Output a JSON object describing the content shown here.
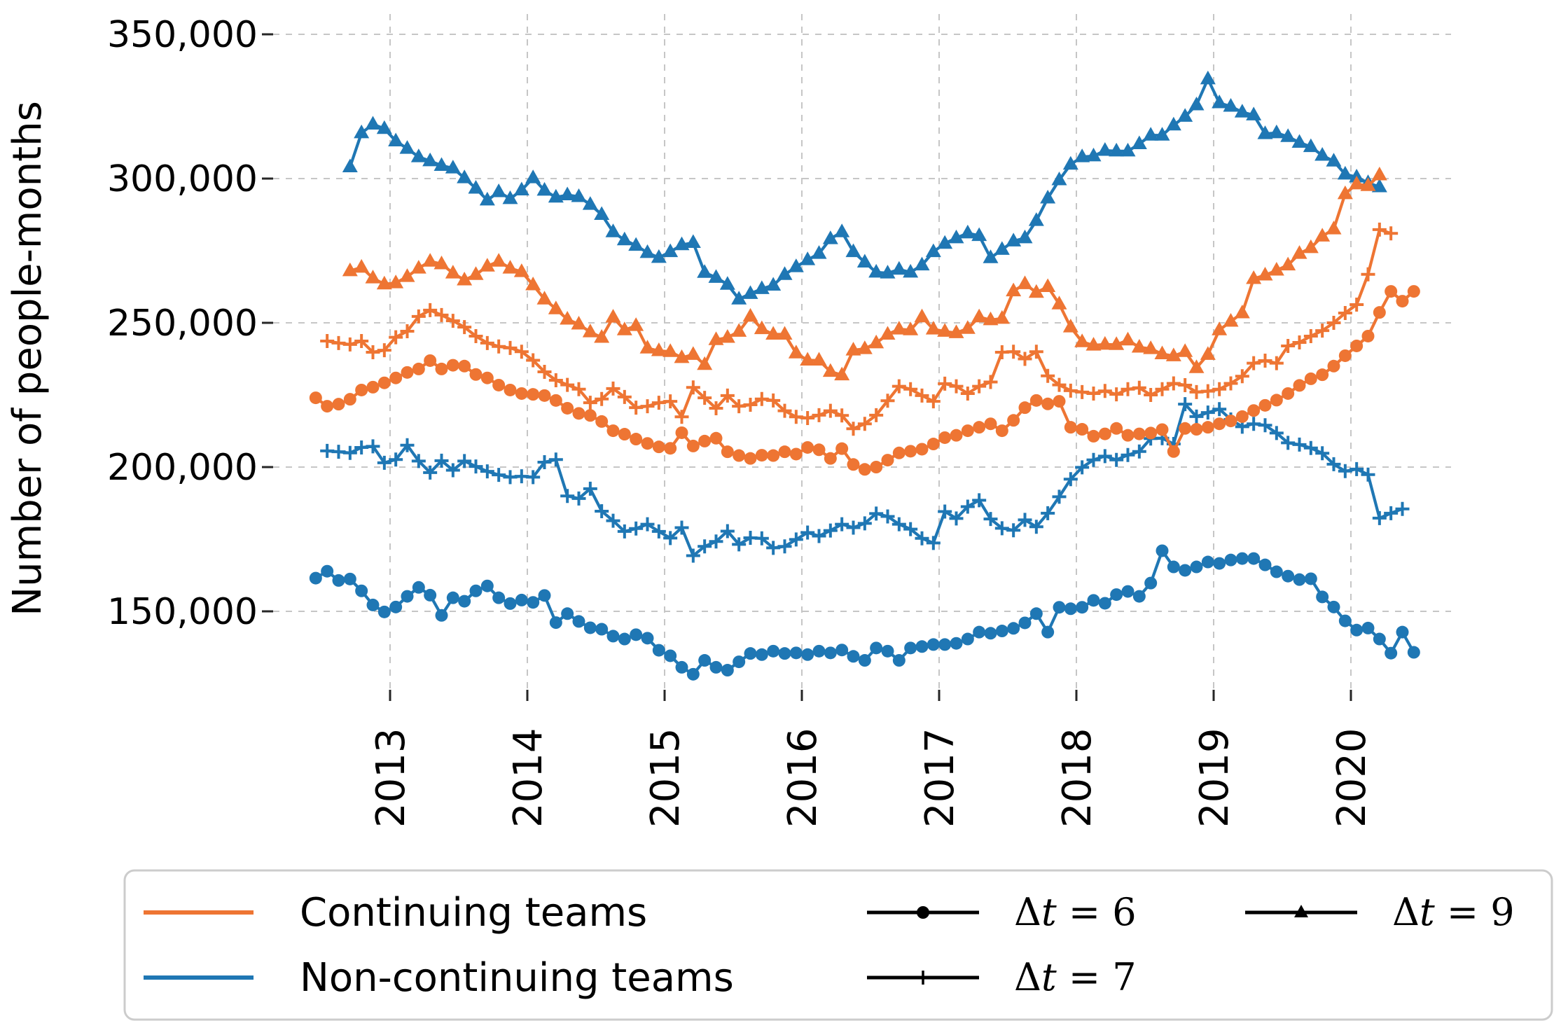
{
  "figure": {
    "ylabel": "Number of people-months",
    "background": "#ffffff",
    "grid_color": "#c6c6c6",
    "tick_color": "#262626"
  },
  "axes": {
    "y_ticks": [
      {
        "value": 350000,
        "label": "350,000"
      },
      {
        "value": 300000,
        "label": "300,000"
      },
      {
        "value": 250000,
        "label": "250,000"
      },
      {
        "value": 200000,
        "label": "200,000"
      },
      {
        "value": 150000,
        "label": "150,000"
      }
    ],
    "x_ticks": [
      {
        "value": 2013,
        "label": "2013"
      },
      {
        "value": 2014,
        "label": "2014"
      },
      {
        "value": 2015,
        "label": "2015"
      },
      {
        "value": 2016,
        "label": "2016"
      },
      {
        "value": 2017,
        "label": "2017"
      },
      {
        "value": 2018,
        "label": "2018"
      },
      {
        "value": 2019,
        "label": "2019"
      },
      {
        "value": 2020,
        "label": "2020"
      }
    ],
    "ylim": [
      123000,
      357000
    ],
    "xlim": [
      2012.15,
      2020.73
    ],
    "grid": true
  },
  "legend": {
    "groups": [
      {
        "label": "Continuing teams",
        "color": "#ee7533"
      },
      {
        "label": "Non-continuing teams",
        "color": "#1f77b4"
      }
    ],
    "dt_items": [
      {
        "label": "Δt = 6",
        "marker": "circle"
      },
      {
        "label": "Δt = 7",
        "marker": "plus"
      },
      {
        "label": "Δt = 9",
        "marker": "triangle"
      }
    ]
  },
  "chart_data": {
    "type": "line",
    "x_unit": "monthly, decimal years (mid-month)",
    "y_unit": "people-months (values stored in thousands)",
    "series": [
      {
        "name": "Non-continuing teams, Δt = 9",
        "group": "Non-continuing teams",
        "dt": 9,
        "color": "#1f77b4",
        "marker": "triangle",
        "start_year": 2012,
        "start_month": 9,
        "values_thousands": [
          304.0,
          315.8,
          318.8,
          317.3,
          313.0,
          310.4,
          307.5,
          306.1,
          304.5,
          303.6,
          300.2,
          296.6,
          292.5,
          295.4,
          293.0,
          296.0,
          300.2,
          295.9,
          293.5,
          294.3,
          293.7,
          291.0,
          287.5,
          281.5,
          278.7,
          276.8,
          274.3,
          272.6,
          274.6,
          277.0,
          277.8,
          267.4,
          265.7,
          263.3,
          258.2,
          260.1,
          261.8,
          263.0,
          266.7,
          269.4,
          271.8,
          274.0,
          279.1,
          281.5,
          274.6,
          271.0,
          267.5,
          267.2,
          268.5,
          267.5,
          270.0,
          274.6,
          277.5,
          279.4,
          281.1,
          280.2,
          272.5,
          275.4,
          278.3,
          279.4,
          285.4,
          293.2,
          299.5,
          304.9,
          307.5,
          307.8,
          309.7,
          309.5,
          309.5,
          312.0,
          315.0,
          315.0,
          318.5,
          321.5,
          325.5,
          334.5,
          326.2,
          325.0,
          323.0,
          322.0,
          315.5,
          315.8,
          314.5,
          312.5,
          311.0,
          308.0,
          306.0,
          301.5,
          300.5,
          298.5,
          297.1
        ]
      },
      {
        "name": "Continuing teams, Δt = 9",
        "group": "Continuing teams",
        "dt": 9,
        "color": "#ee7533",
        "marker": "triangle",
        "start_year": 2012,
        "start_month": 9,
        "values_thousands": [
          268.0,
          269.2,
          265.5,
          263.4,
          263.8,
          266.0,
          268.9,
          271.3,
          270.4,
          267.2,
          264.8,
          266.7,
          269.6,
          271.3,
          268.9,
          267.7,
          263.1,
          258.2,
          254.8,
          251.2,
          249.5,
          246.8,
          244.9,
          251.9,
          247.5,
          249.0,
          241.2,
          240.3,
          240.0,
          237.9,
          239.0,
          235.5,
          244.1,
          244.9,
          247.0,
          252.2,
          247.9,
          246.0,
          246.0,
          239.5,
          237.0,
          237.0,
          233.1,
          231.9,
          240.5,
          241.0,
          243.0,
          246.0,
          247.8,
          247.5,
          252.0,
          247.8,
          247.0,
          246.5,
          248.0,
          252.0,
          251.0,
          251.5,
          261.0,
          263.5,
          260.5,
          262.5,
          256.5,
          248.5,
          243.4,
          242.2,
          242.5,
          242.4,
          244.0,
          241.5,
          241.0,
          239.2,
          238.5,
          240.0,
          234.4,
          239.0,
          247.5,
          250.5,
          253.4,
          265.3,
          266.5,
          268.2,
          270.0,
          274.0,
          276.0,
          280.0,
          282.5,
          294.7,
          298.1,
          297.5,
          301.2
        ]
      },
      {
        "name": "Continuing teams, Δt = 7",
        "group": "Continuing teams",
        "dt": 7,
        "color": "#ee7533",
        "marker": "plus",
        "start_year": 2012,
        "start_month": 7,
        "values_thousands": [
          243.7,
          243.0,
          242.5,
          243.7,
          239.8,
          240.5,
          245.0,
          247.1,
          252.2,
          254.4,
          252.7,
          250.7,
          248.5,
          245.4,
          243.0,
          241.8,
          241.3,
          240.0,
          237.0,
          233.0,
          230.1,
          228.5,
          227.0,
          222.3,
          223.6,
          227.2,
          224.3,
          220.6,
          221.1,
          222.3,
          222.8,
          217.4,
          227.6,
          224.0,
          220.4,
          224.8,
          221.1,
          221.6,
          223.6,
          223.1,
          219.5,
          217.4,
          217.0,
          218.0,
          219.5,
          217.9,
          213.3,
          215.0,
          218.0,
          223.0,
          228.0,
          227.0,
          224.8,
          222.8,
          228.9,
          228.0,
          225.5,
          228.0,
          229.5,
          239.8,
          240.0,
          237.5,
          240.0,
          231.6,
          228.5,
          226.5,
          226.0,
          225.5,
          226.4,
          225.2,
          227.0,
          227.5,
          225.0,
          227.0,
          229.0,
          228.4,
          226.0,
          226.3,
          227.0,
          229.0,
          231.5,
          236.0,
          236.9,
          236.0,
          242.0,
          243.2,
          245.4,
          247.3,
          250.0,
          253.4,
          256.3,
          266.8,
          282.3,
          281.0
        ]
      },
      {
        "name": "Non-continuing teams, Δt = 7",
        "group": "Non-continuing teams",
        "dt": 7,
        "color": "#1f77b4",
        "marker": "plus",
        "start_year": 2012,
        "start_month": 7,
        "values_thousands": [
          205.6,
          205.3,
          204.9,
          206.8,
          207.2,
          201.5,
          202.6,
          207.6,
          202.1,
          198.1,
          202.2,
          198.9,
          202.1,
          200.2,
          198.5,
          197.3,
          196.5,
          196.8,
          196.5,
          201.7,
          202.6,
          190.0,
          189.1,
          192.5,
          184.7,
          181.4,
          177.7,
          178.7,
          180.2,
          177.7,
          175.4,
          179.0,
          169.3,
          172.5,
          174.2,
          177.8,
          173.2,
          175.5,
          175.3,
          172.0,
          172.5,
          174.9,
          177.3,
          176.1,
          178.0,
          180.2,
          179.0,
          180.5,
          183.9,
          182.9,
          180.2,
          178.5,
          175.3,
          173.7,
          184.6,
          182.2,
          186.3,
          188.5,
          182.0,
          178.8,
          178.1,
          181.7,
          179.3,
          184.0,
          189.7,
          195.8,
          199.9,
          202.5,
          203.8,
          202.5,
          204.2,
          205.4,
          209.9,
          210.0,
          208.0,
          221.8,
          217.5,
          218.9,
          220.1,
          216.5,
          214.0,
          215.0,
          214.5,
          211.8,
          208.4,
          207.8,
          206.6,
          204.8,
          201.0,
          198.6,
          199.3,
          197.4,
          182.3,
          184.0,
          185.5
        ]
      },
      {
        "name": "Continuing teams, Δt = 6",
        "group": "Continuing teams",
        "dt": 6,
        "color": "#ee7533",
        "marker": "circle",
        "start_year": 2012,
        "start_month": 6,
        "values_thousands": [
          224.0,
          221.1,
          221.8,
          223.5,
          226.7,
          227.7,
          229.2,
          230.9,
          232.8,
          234.0,
          236.9,
          234.0,
          235.3,
          235.0,
          232.1,
          230.9,
          228.4,
          226.7,
          225.5,
          225.2,
          224.8,
          223.1,
          220.4,
          218.6,
          217.9,
          215.8,
          212.6,
          211.4,
          209.7,
          208.2,
          207.0,
          206.5,
          211.9,
          207.3,
          209.0,
          210.0,
          205.3,
          204.0,
          203.0,
          204.1,
          204.0,
          205.3,
          204.5,
          206.8,
          206.0,
          203.0,
          206.4,
          200.9,
          199.2,
          200.0,
          202.4,
          204.9,
          205.5,
          206.2,
          208.0,
          210.2,
          211.0,
          212.6,
          213.8,
          215.0,
          212.6,
          216.2,
          220.6,
          223.1,
          221.9,
          222.8,
          213.8,
          213.1,
          210.7,
          211.5,
          213.4,
          211.0,
          211.5,
          211.8,
          213.0,
          205.4,
          213.4,
          213.1,
          213.8,
          215.0,
          216.0,
          217.5,
          219.6,
          221.4,
          223.2,
          225.5,
          228.3,
          230.6,
          232.0,
          235.0,
          238.6,
          242.0,
          245.4,
          253.6,
          260.9,
          257.5,
          260.9
        ]
      },
      {
        "name": "Non-continuing teams, Δt = 6",
        "group": "Non-continuing teams",
        "dt": 6,
        "color": "#1f77b4",
        "marker": "circle",
        "start_year": 2012,
        "start_month": 6,
        "values_thousands": [
          161.5,
          163.9,
          160.7,
          161.2,
          157.1,
          152.2,
          149.8,
          151.5,
          155.2,
          158.3,
          155.6,
          148.6,
          154.7,
          153.5,
          157.1,
          158.8,
          154.7,
          152.7,
          153.9,
          153.1,
          155.5,
          146.1,
          149.2,
          146.5,
          144.3,
          143.8,
          141.4,
          140.4,
          141.9,
          140.7,
          136.5,
          134.6,
          130.6,
          128.2,
          133.0,
          130.6,
          129.6,
          132.5,
          135.4,
          135.0,
          136.2,
          135.4,
          135.6,
          135.0,
          136.2,
          135.6,
          136.6,
          134.4,
          133.0,
          137.3,
          136.2,
          133.0,
          137.3,
          137.8,
          138.5,
          138.5,
          138.9,
          140.4,
          142.8,
          142.4,
          143.2,
          144.1,
          146.0,
          149.2,
          142.8,
          151.4,
          150.9,
          151.4,
          153.8,
          152.8,
          155.8,
          156.9,
          155.2,
          159.8,
          171.0,
          165.4,
          164.2,
          165.4,
          167.1,
          166.6,
          167.8,
          168.3,
          168.3,
          166.1,
          163.7,
          162.2,
          161.0,
          161.3,
          155.0,
          151.5,
          146.7,
          143.5,
          144.2,
          140.4,
          135.5,
          142.8,
          135.8
        ]
      }
    ]
  }
}
